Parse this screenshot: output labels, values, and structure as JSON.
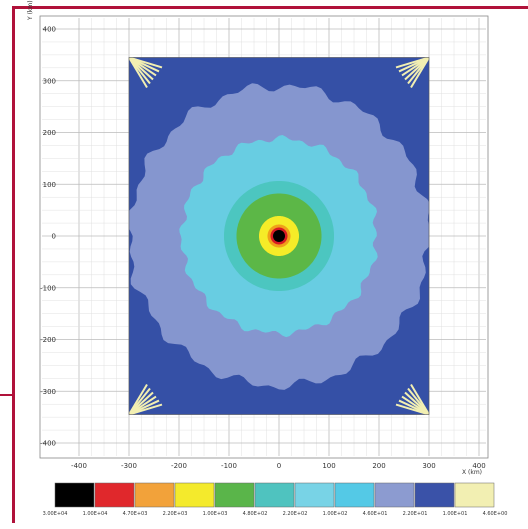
{
  "chart_data": {
    "type": "heatmap",
    "title": "",
    "xlabel": "X (km)",
    "ylabel": "Y (km)",
    "xlim": [
      -400,
      400
    ],
    "ylim": [
      -400,
      400
    ],
    "x_ticks": [
      "-400",
      "-300",
      "-200",
      "-100",
      "0",
      "100",
      "200",
      "300",
      "400"
    ],
    "y_ticks": [
      "400",
      "300",
      "200",
      "100",
      "0",
      "-100",
      "-200",
      "-300",
      "-400"
    ],
    "grid": true,
    "field": {
      "center": [
        0,
        0
      ],
      "extent_x": [
        -300,
        300
      ],
      "extent_y": [
        -345,
        345
      ],
      "bands": [
        {
          "radius": 12,
          "color": "#000000"
        },
        {
          "radius": 17,
          "color": "#d81b24"
        },
        {
          "radius": 23,
          "color": "#f0a01a"
        },
        {
          "radius": 40,
          "color": "#f5ec28"
        },
        {
          "radius": 85,
          "color": "#5cb747"
        },
        {
          "radius": 110,
          "color": "#4cc6c0"
        },
        {
          "radius": 195,
          "color": "#68cde2"
        },
        {
          "radius": 300,
          "color": "#8596cf"
        },
        {
          "radius": 9999,
          "color": "#3550a6"
        }
      ]
    },
    "colorbar": {
      "colors": [
        "#000000",
        "#e0282c",
        "#f2a23a",
        "#f4ea2c",
        "#5ab54a",
        "#4fc3bf",
        "#78d3e6",
        "#54c9e6",
        "#8c9bd0",
        "#3a52a8",
        "#f2efb2"
      ],
      "labels": [
        "3.00E+04",
        "1.00E+04",
        "4.70E+03",
        "2.20E+03",
        "1.00E+03",
        "4.80E+02",
        "2.20E+02",
        "1.00E+02",
        "4.60E+01",
        "2.20E+01",
        "1.00E+01",
        "4.60E+00"
      ]
    }
  }
}
